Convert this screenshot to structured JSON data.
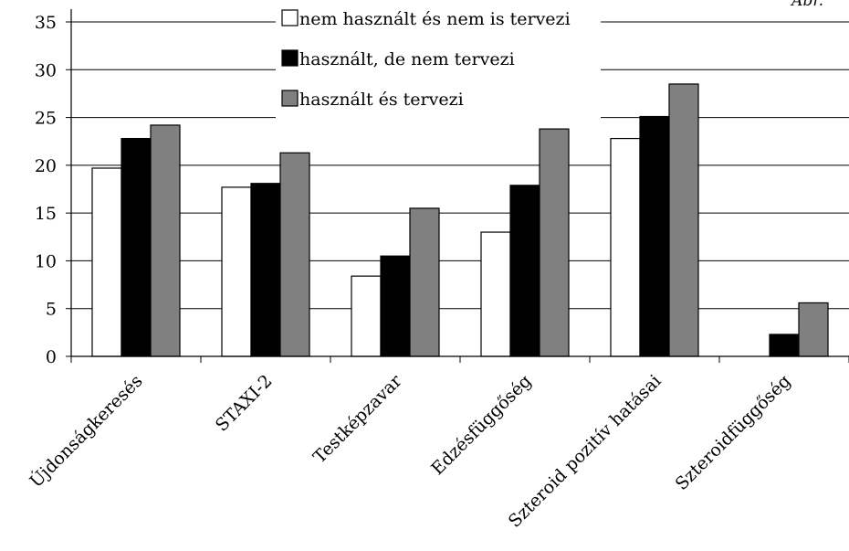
{
  "chart_data": {
    "type": "bar",
    "title": "",
    "xlabel": "",
    "ylabel": "",
    "ylim": [
      0,
      35
    ],
    "yticks": [
      0,
      5,
      10,
      15,
      20,
      25,
      30,
      35
    ],
    "grid": true,
    "legend_position": "top-center",
    "categories": [
      "Újdonságkeresés",
      "STAXI-2",
      "Testképzavar",
      "Edzésfüggőség",
      "Szteroid pozitív hatásai",
      "Szteroidfüggőség"
    ],
    "series": [
      {
        "name": "nem használt és nem is tervezi",
        "color": "#ffffff",
        "values": [
          19.7,
          17.7,
          8.4,
          13.0,
          22.8,
          0.0
        ]
      },
      {
        "name": "használt, de nem tervezi",
        "color": "#000000",
        "values": [
          22.8,
          18.1,
          10.5,
          17.9,
          25.1,
          2.3
        ]
      },
      {
        "name": "használt és tervezi",
        "color": "#808080",
        "values": [
          24.2,
          21.3,
          15.5,
          23.8,
          28.5,
          5.6
        ]
      }
    ],
    "corner_text": "Ábr."
  }
}
